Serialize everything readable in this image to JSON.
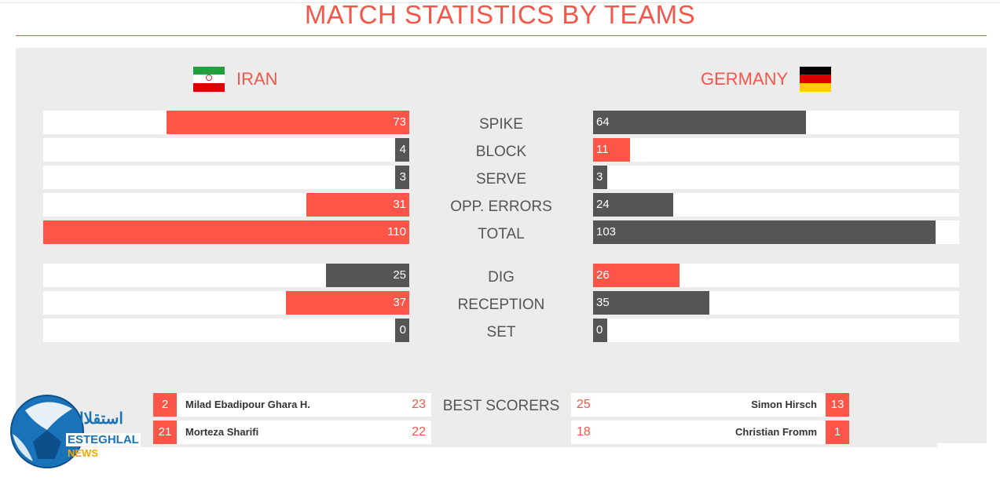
{
  "title": "MATCH STATISTICS BY TEAMS",
  "teams": {
    "left": {
      "name": "IRAN",
      "flag_colors": [
        "#239f40",
        "#ffffff",
        "#da0000"
      ]
    },
    "right": {
      "name": "GERMANY",
      "flag_colors": [
        "#000000",
        "#dd0000",
        "#ffce00"
      ]
    }
  },
  "colors": {
    "accent": "#fd5649",
    "dark": "#555555",
    "panel": "#ececec"
  },
  "chart_data": {
    "type": "bar",
    "title": "MATCH STATISTICS BY TEAMS",
    "xlim": [
      0,
      110
    ],
    "series": [
      {
        "name": "IRAN",
        "values": [
          73,
          4,
          3,
          31,
          110,
          25,
          37,
          0
        ]
      },
      {
        "name": "GERMANY",
        "values": [
          64,
          11,
          3,
          24,
          103,
          26,
          35,
          0
        ]
      }
    ],
    "categories": [
      "SPIKE",
      "BLOCK",
      "SERVE",
      "OPP. ERRORS",
      "TOTAL",
      "DIG",
      "RECEPTION",
      "SET"
    ],
    "rows": [
      {
        "label": "SPIKE",
        "left": 73,
        "right": 64,
        "left_color": "red",
        "right_color": "dark"
      },
      {
        "label": "BLOCK",
        "left": 4,
        "right": 11,
        "left_color": "dark",
        "right_color": "red"
      },
      {
        "label": "SERVE",
        "left": 3,
        "right": 3,
        "left_color": "dark",
        "right_color": "dark"
      },
      {
        "label": "OPP. ERRORS",
        "left": 31,
        "right": 24,
        "left_color": "red",
        "right_color": "dark"
      },
      {
        "label": "TOTAL",
        "left": 110,
        "right": 103,
        "left_color": "red",
        "right_color": "dark"
      },
      {
        "label": "DIG",
        "left": 25,
        "right": 26,
        "left_color": "dark",
        "right_color": "red"
      },
      {
        "label": "RECEPTION",
        "left": 37,
        "right": 35,
        "left_color": "red",
        "right_color": "dark"
      },
      {
        "label": "SET",
        "left": 0,
        "right": 0,
        "left_color": "dark",
        "right_color": "dark"
      }
    ]
  },
  "best_scorers": {
    "label": "BEST SCORERS",
    "left": [
      {
        "number": "2",
        "name": "Milad Ebadipour Ghara H.",
        "points": "23"
      },
      {
        "number": "21",
        "name": "Morteza Sharifi",
        "points": "22"
      }
    ],
    "right": [
      {
        "number": "13",
        "name": "Simon Hirsch",
        "points": "25"
      },
      {
        "number": "1",
        "name": "Christian Fromm",
        "points": "18"
      }
    ]
  },
  "logo": {
    "line1": "استقلال",
    "line2": "ESTEGHLAL",
    "line3": "NEWS"
  }
}
